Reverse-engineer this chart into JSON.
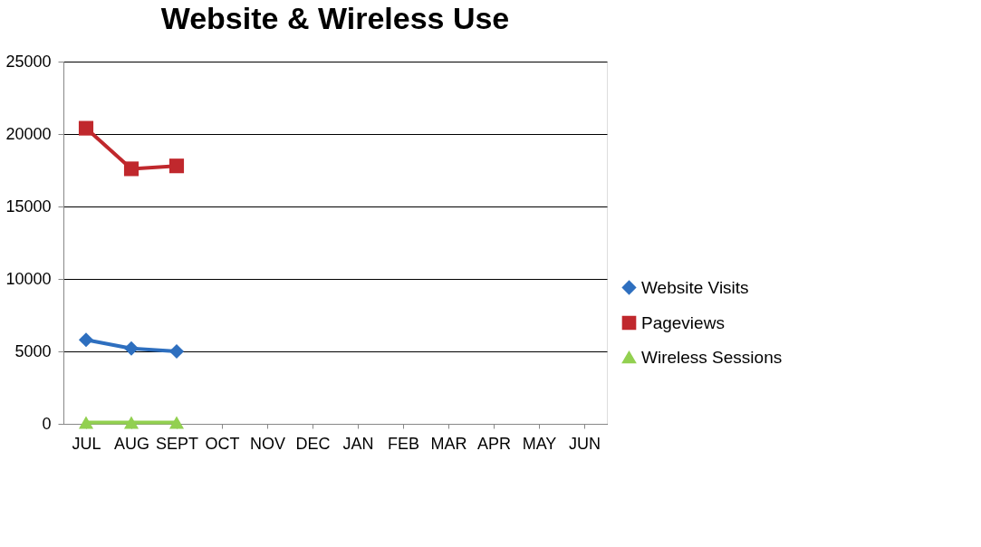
{
  "chart_data": {
    "type": "line",
    "title": "Website & Wireless Use",
    "categories": [
      "JUL",
      "AUG",
      "SEPT",
      "OCT",
      "NOV",
      "DEC",
      "JAN",
      "FEB",
      "MAR",
      "APR",
      "MAY",
      "JUN"
    ],
    "series": [
      {
        "name": "Website Visits",
        "color": "#2e6fbf",
        "marker": "diamond",
        "values": [
          5800,
          5200,
          5000,
          null,
          null,
          null,
          null,
          null,
          null,
          null,
          null,
          null
        ]
      },
      {
        "name": "Pageviews",
        "color": "#c0282d",
        "marker": "square",
        "values": [
          20400,
          17600,
          17800,
          null,
          null,
          null,
          null,
          null,
          null,
          null,
          null,
          null
        ]
      },
      {
        "name": "Wireless Sessions",
        "color": "#92d050",
        "marker": "triangle",
        "values": [
          100,
          100,
          100,
          null,
          null,
          null,
          null,
          null,
          null,
          null,
          null,
          null
        ]
      }
    ],
    "ylim": [
      0,
      25000
    ],
    "yticks": [
      0,
      5000,
      10000,
      15000,
      20000,
      25000
    ],
    "grid": "y",
    "legend": "right",
    "line_style": "solid"
  }
}
